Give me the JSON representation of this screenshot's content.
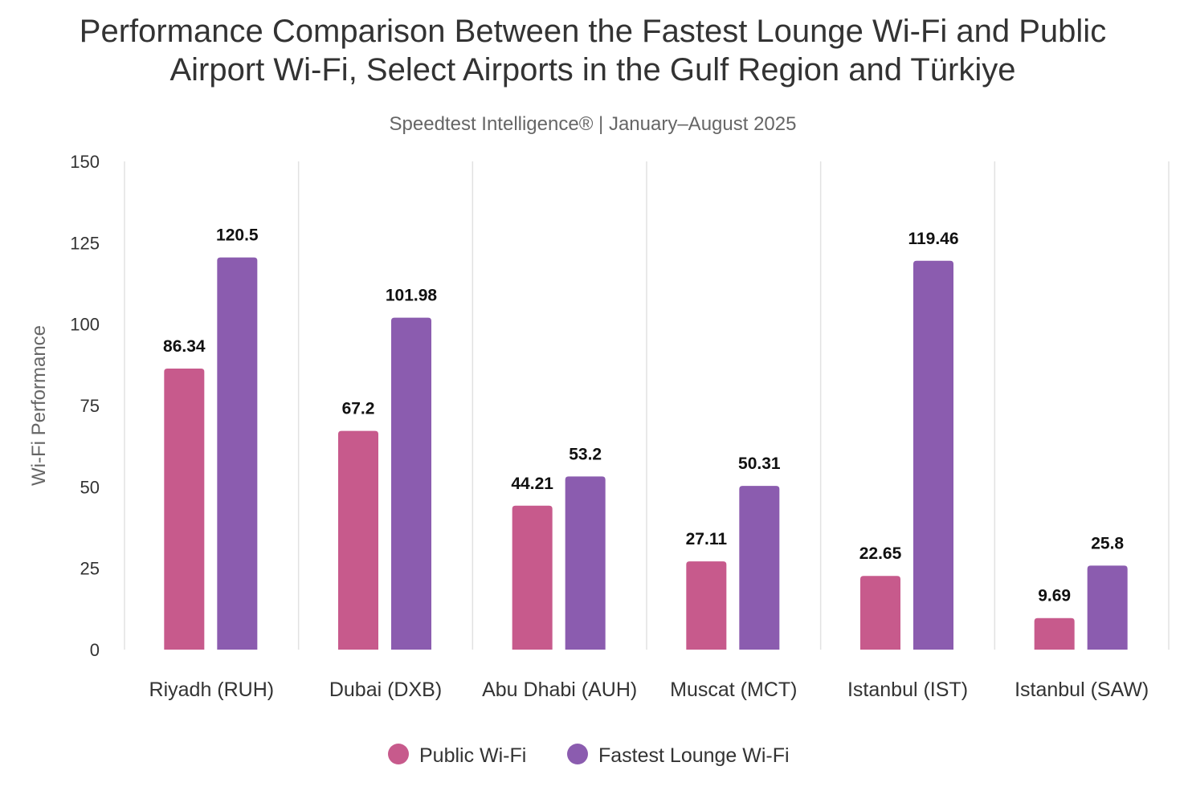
{
  "chart_data": {
    "type": "bar",
    "title_lines": [
      "Performance Comparison Between the Fastest Lounge Wi-Fi and Public",
      "Airport Wi-Fi, Select Airports in the Gulf Region and Türkiye"
    ],
    "subtitle": "Speedtest Intelligence® | January–August 2025",
    "xlabel": "",
    "ylabel": "Wi-Fi Performance",
    "ylim": [
      0,
      150
    ],
    "yticks": [
      0,
      25,
      50,
      75,
      100,
      125,
      150
    ],
    "grid": "vertical separators between categories",
    "legend_placement": "bottom",
    "categories": [
      "Riyadh (RUH)",
      "Dubai (DXB)",
      "Abu Dhabi (AUH)",
      "Muscat (MCT)",
      "Istanbul (IST)",
      "Istanbul (SAW)"
    ],
    "series": [
      {
        "name": "Public Wi-Fi",
        "color": "#C75A8C",
        "values": [
          86.34,
          67.2,
          44.21,
          27.11,
          22.65,
          9.69
        ]
      },
      {
        "name": "Fastest Lounge Wi-Fi",
        "color": "#8B5CAF",
        "values": [
          120.5,
          101.98,
          53.2,
          50.31,
          119.46,
          25.8
        ]
      }
    ]
  }
}
